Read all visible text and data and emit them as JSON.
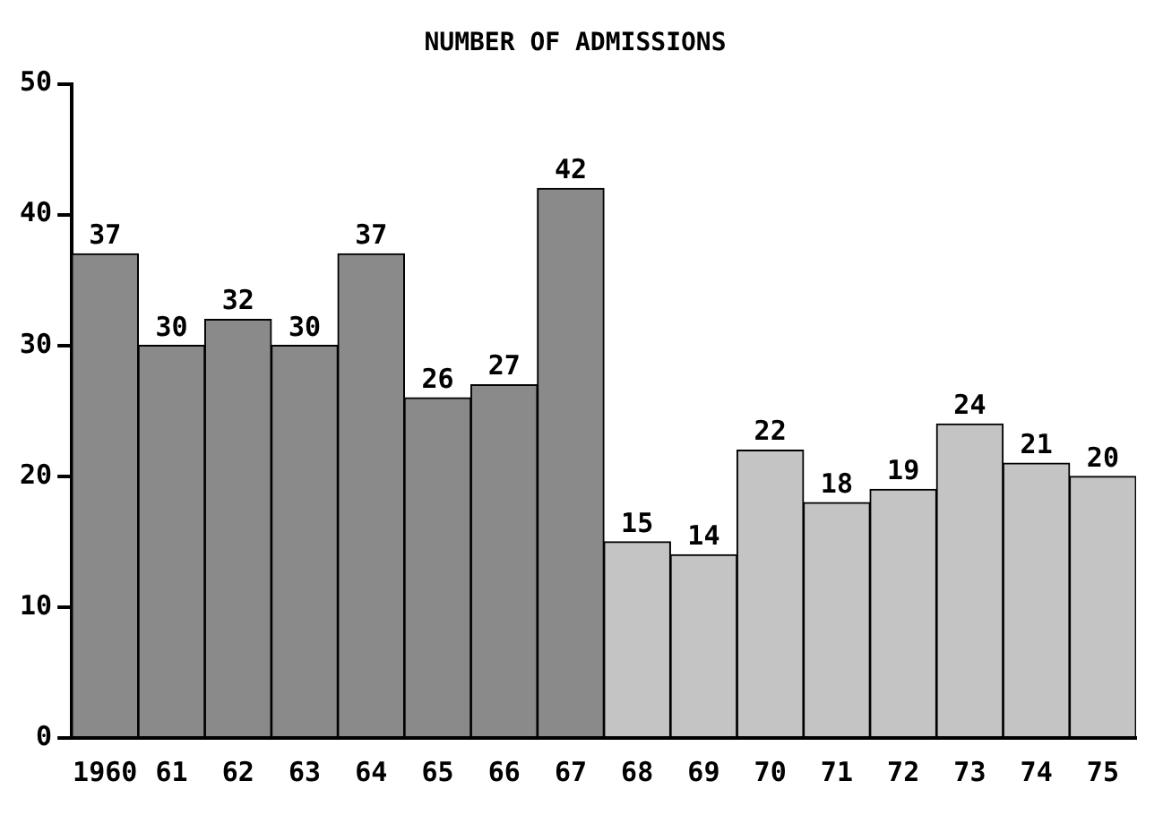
{
  "chart_data": {
    "type": "bar",
    "title": "NUMBER OF ADMISSIONS",
    "categories": [
      "1960",
      "61",
      "62",
      "63",
      "64",
      "65",
      "66",
      "67",
      "68",
      "69",
      "70",
      "71",
      "72",
      "73",
      "74",
      "75"
    ],
    "values": [
      37,
      30,
      32,
      30,
      37,
      26,
      27,
      42,
      15,
      14,
      22,
      18,
      19,
      24,
      21,
      20
    ],
    "colors": [
      "#8a8a8a",
      "#8a8a8a",
      "#8a8a8a",
      "#8a8a8a",
      "#8a8a8a",
      "#8a8a8a",
      "#8a8a8a",
      "#8a8a8a",
      "#c4c4c4",
      "#c4c4c4",
      "#c4c4c4",
      "#c4c4c4",
      "#c4c4c4",
      "#c4c4c4",
      "#c4c4c4",
      "#c4c4c4"
    ],
    "ylim": [
      0,
      50
    ],
    "yticks": [
      0,
      10,
      20,
      30,
      40,
      50
    ],
    "grid": false,
    "legend": false,
    "data_labels": true
  }
}
